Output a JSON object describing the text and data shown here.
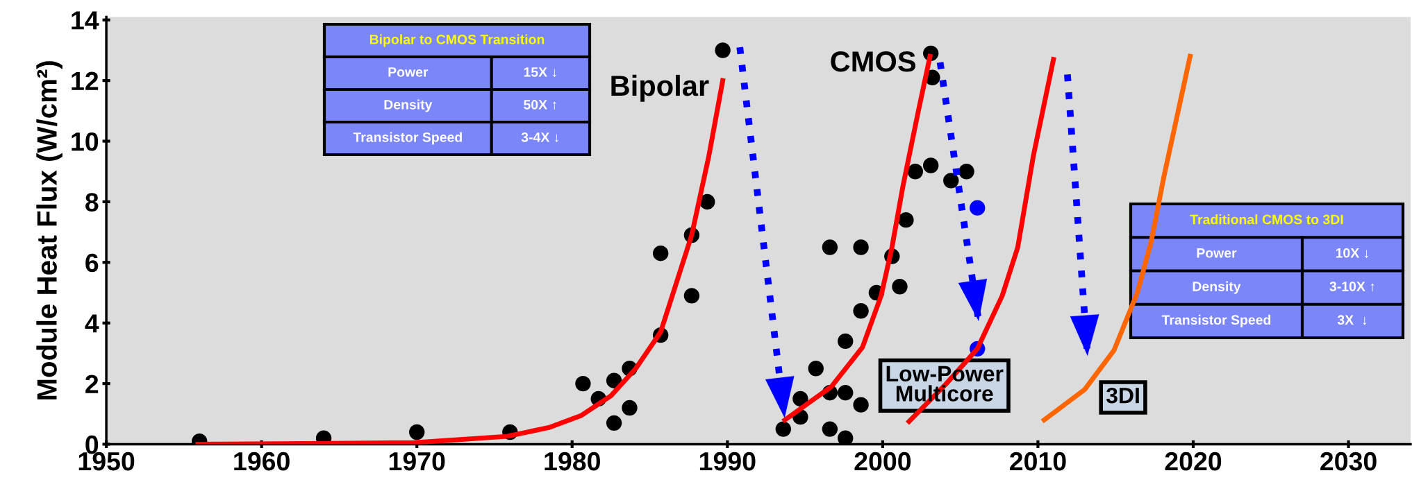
{
  "chart_data": {
    "type": "scatter",
    "ylabel": "Module Heat Flux (W/cm²)",
    "xlim": [
      1950,
      2034
    ],
    "xticks": [
      1950,
      1960,
      1970,
      1980,
      1990,
      2000,
      2010,
      2020,
      2030
    ],
    "ylim": [
      0,
      14.1
    ],
    "yticks": [
      0,
      2,
      4,
      6,
      8,
      10,
      12,
      14
    ],
    "grid": false,
    "legend": false,
    "marker": "circle",
    "series": [
      {
        "color": "#000000",
        "x": [
          1956,
          1964,
          1970,
          1976,
          1980.7,
          1981.7,
          1982.7,
          1982.7,
          1983.7,
          1983.7,
          1985.7,
          1985.7,
          1987.7,
          1987.7,
          1988.7,
          1989.7,
          1993.6,
          1994.7,
          1994.7,
          1995.7,
          1996.6,
          1997.6,
          1996.6,
          1998.6,
          1996.6,
          1997.6,
          1998.6,
          1997.6,
          1998.6,
          1999.6,
          2001.1,
          2000.6,
          2001.5,
          2002.1,
          2003.1,
          2004.4,
          2005.4,
          2003.1,
          2003.2
        ],
        "values": [
          0.1,
          0.2,
          0.4,
          0.4,
          2.0,
          1.5,
          2.1,
          0.7,
          2.5,
          1.2,
          3.6,
          6.3,
          6.9,
          4.9,
          8.0,
          13.0,
          0.5,
          1.5,
          0.9,
          2.5,
          1.7,
          1.7,
          6.5,
          6.5,
          0.5,
          0.2,
          1.3,
          3.4,
          4.4,
          5.0,
          5.2,
          6.2,
          7.4,
          9.0,
          9.2,
          8.7,
          9.0,
          12.9,
          12.1
        ]
      },
      {
        "color": "#0000ff",
        "x": [
          2006.1,
          2006.1
        ],
        "values": [
          7.8,
          3.15
        ]
      },
      {
        "type": "line",
        "color": "#ff0000",
        "marker": "none",
        "x": [
          1955.9,
          1963,
          1969.8,
          1975.8,
          1978.5,
          1980.6,
          1982.5,
          1984.1,
          1985.7,
          1987.7,
          1988.8,
          1989.7
        ],
        "values": [
          0.0,
          0.02,
          0.05,
          0.26,
          0.55,
          0.95,
          1.6,
          2.5,
          3.7,
          6.9,
          9.5,
          12.0
        ]
      },
      {
        "type": "line",
        "color": "#ff0000",
        "marker": "none",
        "x": [
          1993.7,
          1996.7,
          1998.7,
          1999.9,
          2000.6,
          2001.3,
          2002.3,
          2003.05
        ],
        "values": [
          0.8,
          1.9,
          3.2,
          4.9,
          6.5,
          8.5,
          11.0,
          12.8
        ]
      },
      {
        "type": "line",
        "color": "#ff0000",
        "marker": "none",
        "x": [
          2001.7,
          2004.1,
          2006.1,
          2007.7,
          2008.7,
          2009.7,
          2011.0
        ],
        "values": [
          0.75,
          2.0,
          3.15,
          4.9,
          6.5,
          9.5,
          12.7
        ]
      },
      {
        "type": "line",
        "color": "#ff6600",
        "marker": "none",
        "x": [
          2010.4,
          2013.0,
          2014.9,
          2016.4,
          2017.3,
          2018.1,
          2019.8
        ],
        "values": [
          0.8,
          1.8,
          3.1,
          5.0,
          6.7,
          8.8,
          12.8
        ]
      },
      {
        "type": "line",
        "color": "#0000ff",
        "marker": "none",
        "line_style": "dotted",
        "x": [
          1990.8,
          1993.7
        ],
        "values": [
          13.1,
          0.8
        ]
      },
      {
        "type": "line",
        "color": "#0000ff",
        "marker": "none",
        "line_style": "dotted",
        "x": [
          2003.7,
          2006.2
        ],
        "values": [
          12.6,
          4.0
        ]
      },
      {
        "type": "line",
        "color": "#0000ff",
        "marker": "none",
        "line_style": "dotted",
        "x": [
          2011.9,
          2013.2
        ],
        "values": [
          12.2,
          2.85
        ]
      }
    ],
    "annotations": [
      {
        "text": "Bipolar",
        "x": 1989.7,
        "y": 12.0
      },
      {
        "text": "CMOS",
        "x": 2003.05,
        "y": 12.8
      },
      {
        "text": "Low-Power\nMulticore",
        "x": 2004.1,
        "y": 2.0
      },
      {
        "text": "3DI",
        "x": 2013.0,
        "y": 1.8
      },
      "Bipolar to CMOS Transition",
      "Power",
      "15X ↓",
      "Density",
      "50X ↑",
      "Transistor Speed",
      "3-4X ↓",
      "Traditional CMOS to 3DI",
      "Power",
      "10X ↓",
      "Density",
      "3-10X ↑",
      "Transistor Speed",
      "3X  ↓"
    ]
  }
}
